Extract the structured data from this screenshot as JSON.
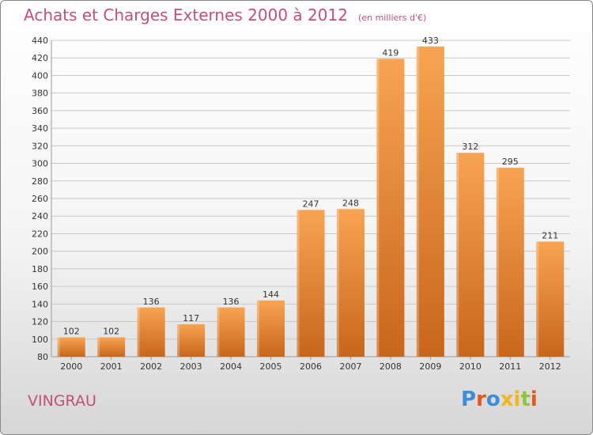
{
  "header": {
    "title": "Achats et Charges Externes 2000 à 2012",
    "unit": "(en milliers d'€)"
  },
  "footer": {
    "city": "VINGRAU",
    "logo": "Proxiti"
  },
  "colors": {
    "title": "#c0507a",
    "bar_light": "#f7a452",
    "bar_dark": "#c8661b",
    "grid": "#c8c8c8"
  },
  "chart_data": {
    "type": "bar",
    "title": "Achats et Charges Externes 2000 à 2012",
    "xlabel": "",
    "ylabel": "",
    "ylim": [
      80,
      440
    ],
    "yticks": [
      80,
      100,
      120,
      140,
      160,
      180,
      200,
      220,
      240,
      260,
      280,
      300,
      320,
      340,
      360,
      380,
      400,
      420,
      440
    ],
    "grid": true,
    "categories": [
      "2000",
      "2001",
      "2002",
      "2003",
      "2004",
      "2005",
      "2006",
      "2007",
      "2008",
      "2009",
      "2010",
      "2011",
      "2012"
    ],
    "values": [
      102,
      102,
      136,
      117,
      136,
      144,
      247,
      248,
      419,
      433,
      312,
      295,
      211
    ]
  }
}
